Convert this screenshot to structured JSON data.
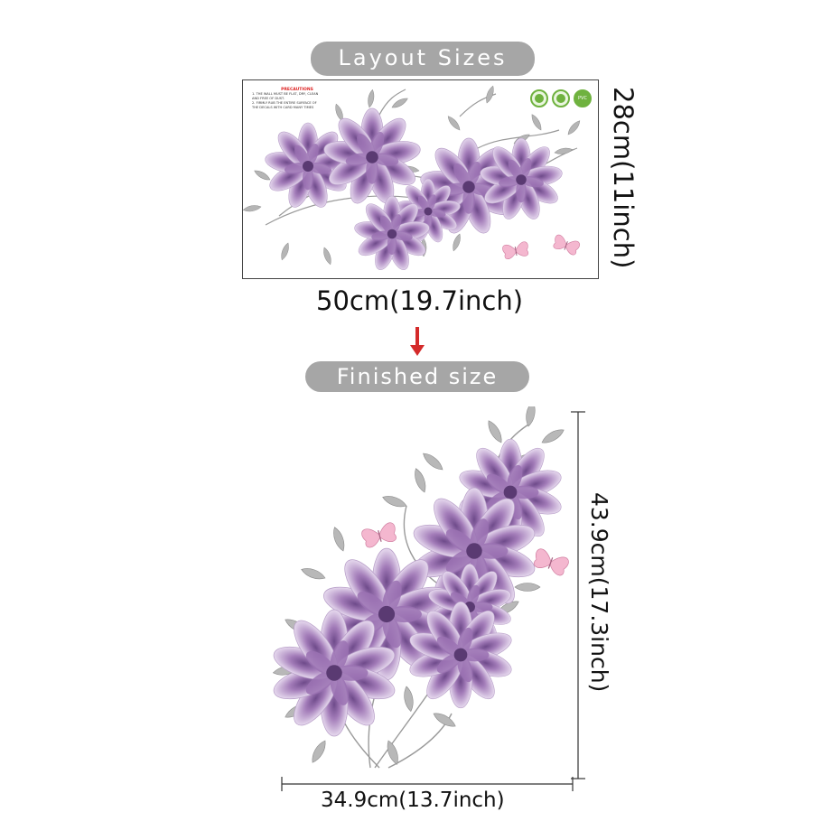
{
  "labels": {
    "layout_sizes": "Layout Sizes",
    "finished_size": "Finished size"
  },
  "dimensions": {
    "layout_width": "50cm(19.7inch)",
    "layout_height": "28cm(11inch)",
    "finished_width": "34.9cm(13.7inch)",
    "finished_height": "43.9cm(17.3inch)"
  },
  "sheet": {
    "precautions_title": "PRECAUTIONS",
    "precautions_lines": [
      "1. THE WALL MUST BE FLAT, DRY, CLEAN",
      "AND FREE OF DUST.",
      "2. FIRMLY RUB THE ENTIRE SURFACE OF",
      "THE DECALS WITH CARD MANY TIMES"
    ],
    "badge_pvc": "PVC"
  },
  "colors": {
    "pill": "#a6a6a6",
    "petal": "#a27bb8",
    "petal_dark": "#7d5a99",
    "leaf": "#a9a9a9",
    "butterfly": "#f0a8c4",
    "arrow": "#d42a2a"
  }
}
